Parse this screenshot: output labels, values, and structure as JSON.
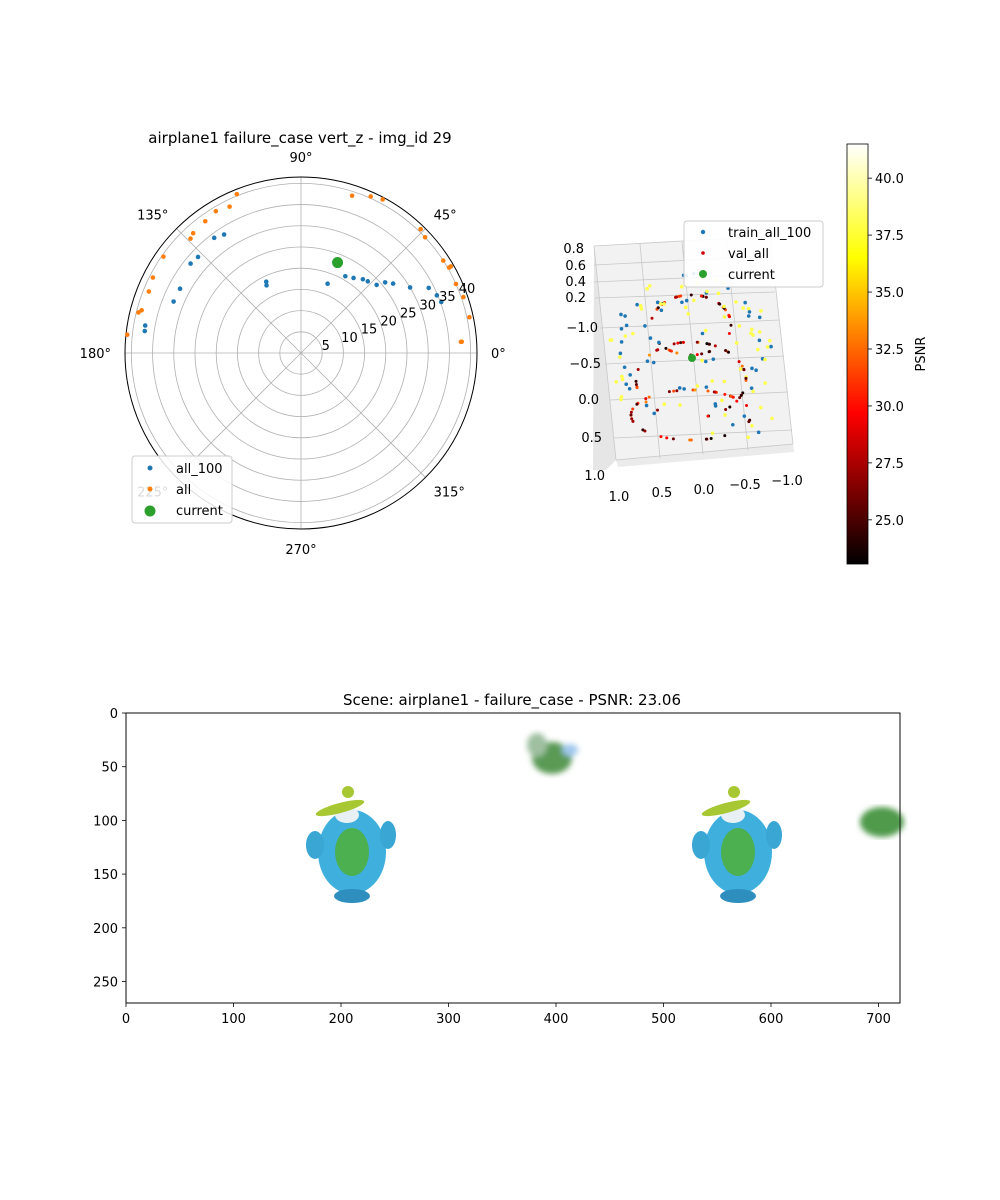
{
  "chart_data": [
    {
      "type": "scatter",
      "projection": "polar",
      "title": "airplane1 failure_case vert_z - img_id 29",
      "theta_tick_labels": [
        "0°",
        "45°",
        "90°",
        "135°",
        "180°",
        "225°",
        "270°",
        "315°"
      ],
      "r_tick_labels": [
        "5",
        "10",
        "15",
        "20",
        "25",
        "30",
        "35",
        "40"
      ],
      "r_ticks": [
        5,
        10,
        15,
        20,
        25,
        30,
        35,
        40
      ],
      "rlim": [
        0,
        41.5
      ],
      "grid": true,
      "legend_position": "lower-left",
      "legend": [
        "all_100",
        "all",
        "current"
      ],
      "series": [
        {
          "name": "all_100",
          "color": "#1f77b4",
          "points": [
            [
              20,
              35.2
            ],
            [
              23,
              34.8
            ],
            [
              27,
              33.8
            ],
            [
              31,
              30.0
            ],
            [
              37,
              27.2
            ],
            [
              40,
              25.9
            ],
            [
              42,
              24.0
            ],
            [
              47,
              23.1
            ],
            [
              50,
              22.7
            ],
            [
              55,
              21.6
            ],
            [
              60,
              20.9
            ],
            [
              69,
              17.5
            ],
            [
              117,
              17.9
            ],
            [
              116,
              18.7
            ],
            [
              123,
              33.3
            ],
            [
              127,
              34.0
            ],
            [
              137,
              33.2
            ],
            [
              141,
              33.5
            ],
            [
              152,
              32.3
            ],
            [
              158,
              32.4
            ],
            [
              170,
              37.3
            ],
            [
              172,
              37.2
            ]
          ]
        },
        {
          "name": "all",
          "color": "#ff7f0e",
          "points": [
            [
              4,
              38.0
            ],
            [
              12,
              40.6
            ],
            [
              19,
              40.5
            ],
            [
              24,
              40.0
            ],
            [
              30,
              40.8
            ],
            [
              33,
              40.0
            ],
            [
              43,
              40.0
            ],
            [
              46,
              40.6
            ],
            [
              62,
              41.0
            ],
            [
              66,
              40.4
            ],
            [
              72,
              39.0
            ],
            [
              112,
              40.4
            ],
            [
              116,
              38.4
            ],
            [
              121,
              39.0
            ],
            [
              126,
              38.4
            ],
            [
              132,
              38.0
            ],
            [
              134,
              37.5
            ],
            [
              145,
              39.6
            ],
            [
              153,
              39.2
            ],
            [
              158,
              38.7
            ],
            [
              165,
              38.9
            ],
            [
              166,
              39.5
            ],
            [
              174,
              41.2
            ],
            [
              4,
              37.8
            ],
            [
              30,
              40.3
            ]
          ]
        },
        {
          "name": "current",
          "color": "#2ca02c",
          "points": [
            [
              68,
              23.0
            ]
          ]
        }
      ]
    },
    {
      "type": "scatter",
      "projection": "3d",
      "x_tick_labels": [
        "1.0",
        "0.5",
        "0.0",
        "−0.5",
        "−1.0"
      ],
      "y_tick_labels": [
        "1.0",
        "0.5",
        "0.0",
        "−0.5",
        "−1.0"
      ],
      "z_tick_labels": [
        "0.2",
        "0.4",
        "0.6",
        "0.8"
      ],
      "legend_position": "upper-right",
      "legend": [
        "train_all_100",
        "val_all",
        "current"
      ],
      "series_colors": {
        "train_all_100": "#1f77b4",
        "train_all_100_psnr_high": "#ffff4d",
        "val_all": "#cc0000",
        "current": "#2ca02c"
      },
      "colorbar": {
        "label": "PSNR",
        "tick_labels": [
          "25.0",
          "27.5",
          "30.0",
          "32.5",
          "35.0",
          "37.5",
          "40.0"
        ],
        "ticks": [
          25.0,
          27.5,
          30.0,
          32.5,
          35.0,
          37.5,
          40.0
        ],
        "range": [
          23.06,
          41.5
        ],
        "colormap": "hot"
      }
    },
    {
      "type": "image",
      "title": "Scene: airplane1 - failure_case - PSNR: 23.06",
      "x_tick_labels": [
        "0",
        "100",
        "200",
        "300",
        "400",
        "500",
        "600",
        "700"
      ],
      "x_ticks": [
        0,
        100,
        200,
        300,
        400,
        500,
        600,
        700
      ],
      "y_tick_labels": [
        "0",
        "50",
        "100",
        "150",
        "200",
        "250"
      ],
      "y_ticks": [
        0,
        50,
        100,
        150,
        200,
        250
      ],
      "xlim": [
        0,
        720
      ],
      "ylim": [
        270,
        0
      ]
    }
  ]
}
